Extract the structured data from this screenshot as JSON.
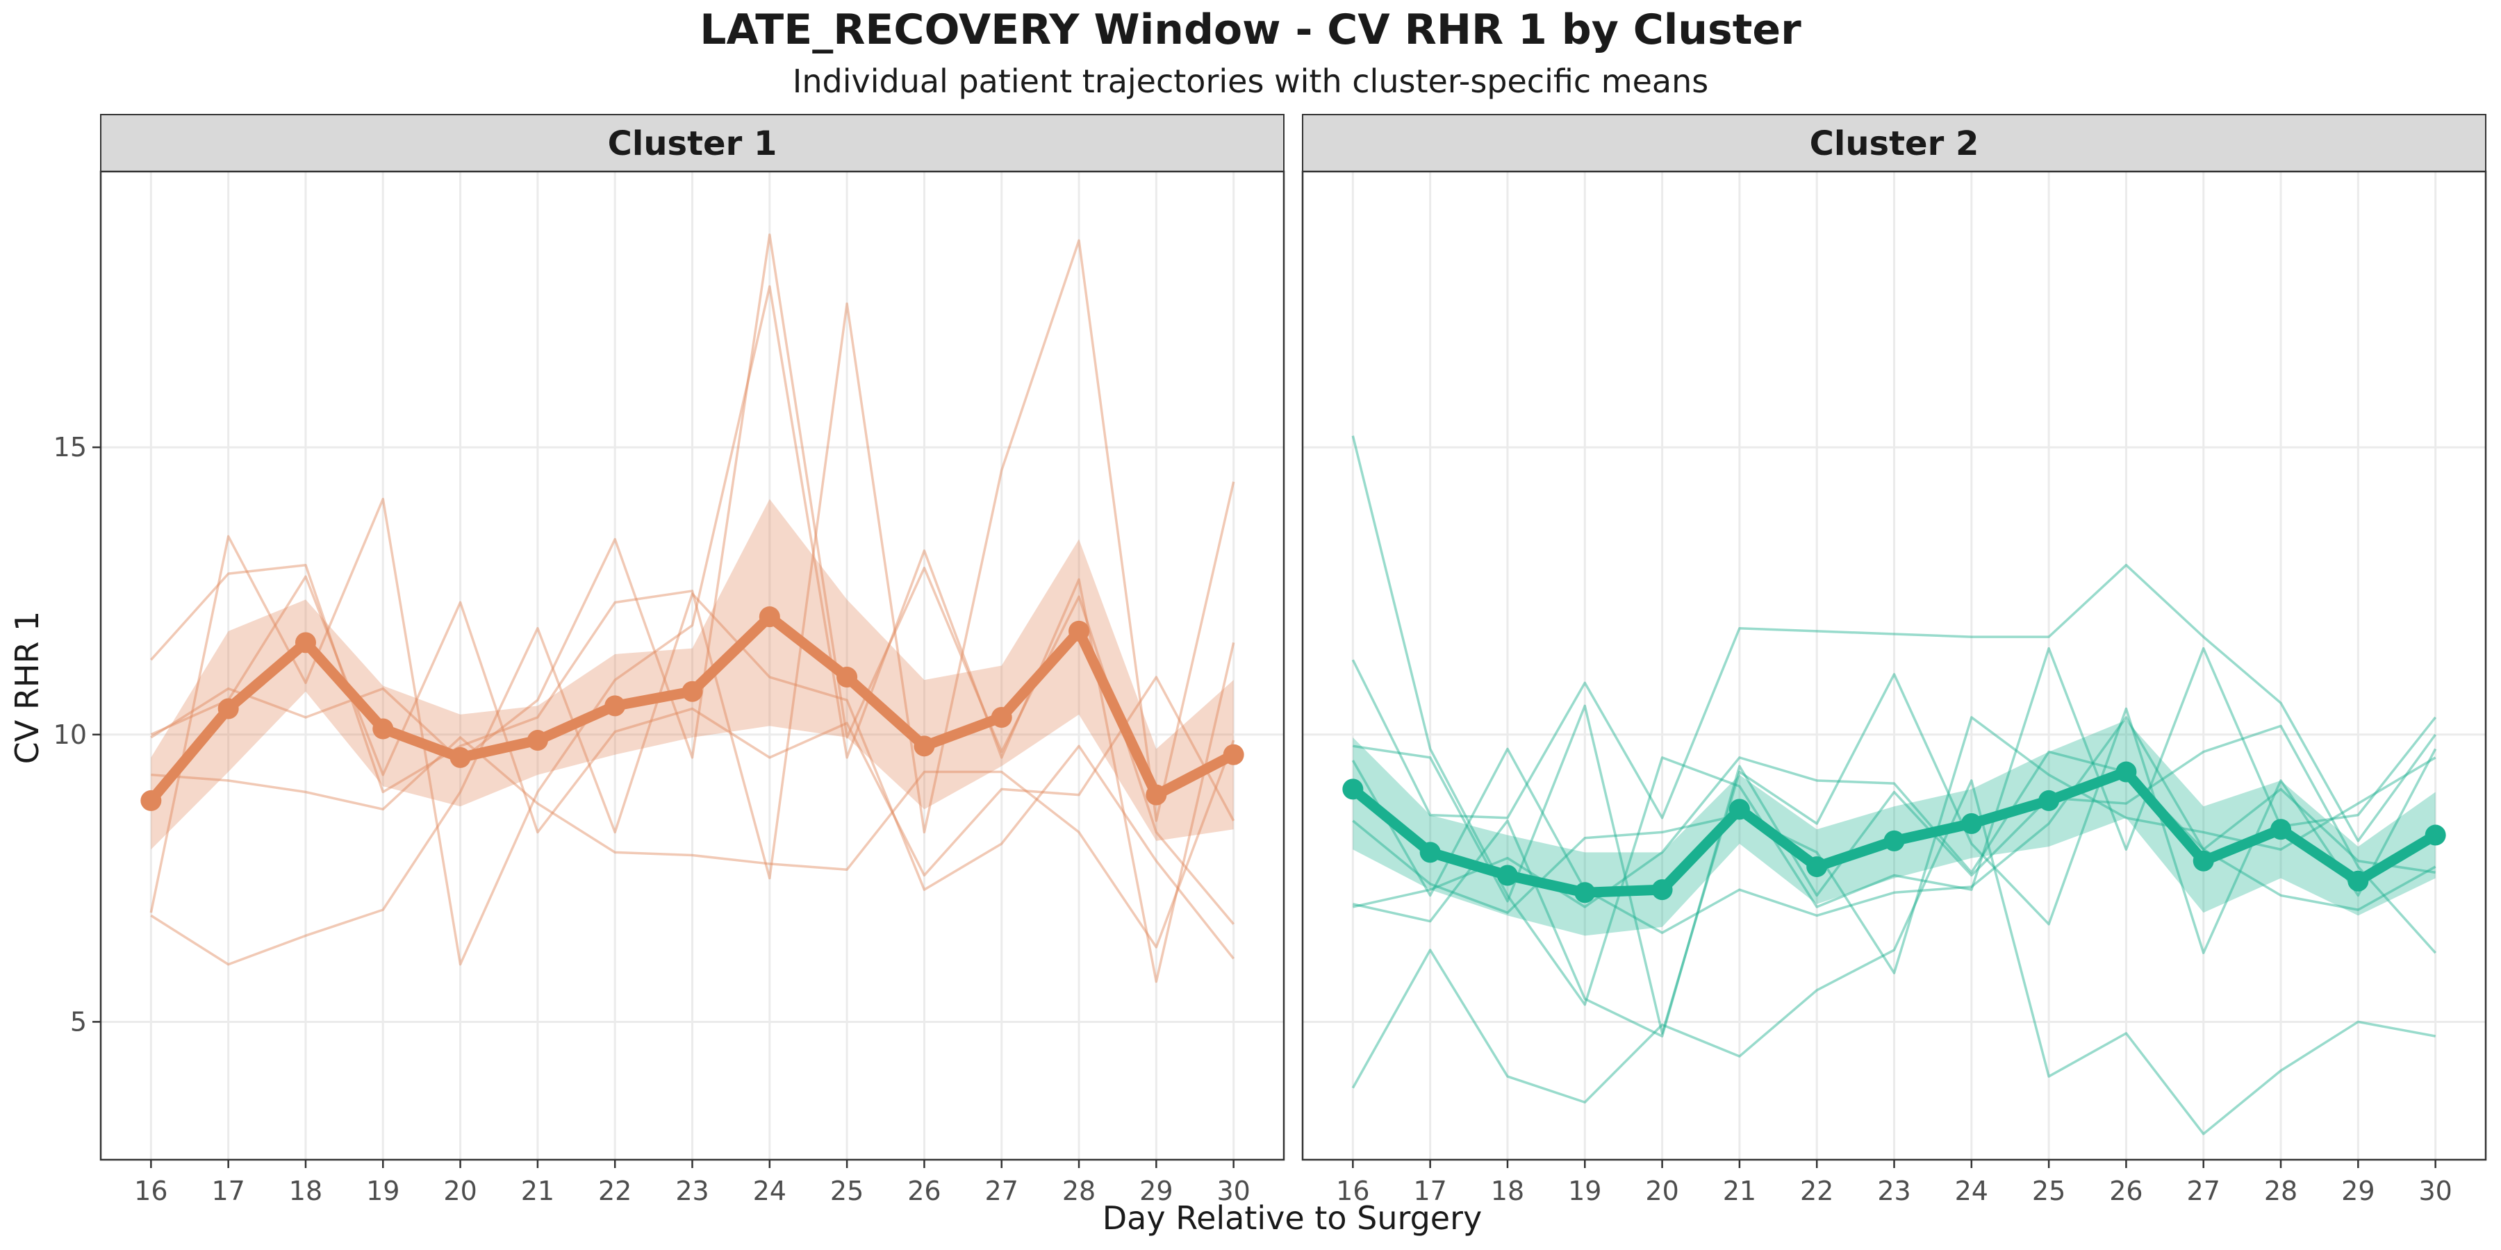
{
  "title": "LATE_RECOVERY Window - CV RHR 1 by Cluster",
  "subtitle": "Individual patient trajectories with cluster-specific means",
  "chart_data": {
    "type": "line",
    "title": "LATE_RECOVERY Window - CV RHR 1 by Cluster",
    "subtitle": "Individual patient trajectories with cluster-specific means",
    "xlabel": "Day Relative to Surgery",
    "ylabel": "CV RHR 1",
    "x": [
      16,
      17,
      18,
      19,
      20,
      21,
      22,
      23,
      24,
      25,
      26,
      27,
      28,
      29,
      30
    ],
    "xlim": [
      15.35,
      30.65
    ],
    "ylim": [
      2.6,
      19.8
    ],
    "yticks": [
      5,
      10,
      15
    ],
    "grid": true,
    "panels": [
      {
        "name": "Cluster 1",
        "color": "#E0875A",
        "mean": [
          8.85,
          10.45,
          11.6,
          10.1,
          9.6,
          9.9,
          10.5,
          10.75,
          12.05,
          11.0,
          9.8,
          10.3,
          11.8,
          8.95,
          9.65
        ],
        "ci_upper": [
          9.6,
          11.8,
          12.35,
          10.85,
          10.35,
          10.5,
          11.4,
          11.5,
          14.1,
          12.35,
          10.95,
          11.2,
          13.4,
          9.75,
          10.95
        ],
        "ci_lower": [
          8.0,
          9.35,
          10.75,
          9.1,
          8.75,
          9.3,
          9.65,
          9.95,
          10.15,
          9.95,
          8.7,
          9.45,
          10.35,
          8.15,
          8.35
        ],
        "individuals": [
          [
            11.3,
            12.8,
            12.95,
            9.0,
            9.8,
            10.3,
            12.3,
            12.5,
            7.5,
            17.5,
            8.3,
            14.6,
            18.6,
            8.5,
            14.4
          ],
          [
            9.95,
            10.8,
            10.3,
            10.8,
            9.55,
            10.6,
            13.4,
            9.6,
            18.7,
            9.95,
            12.9,
            9.7,
            12.4,
            8.3,
            6.7
          ],
          [
            6.9,
            13.45,
            10.9,
            14.1,
            6.0,
            9.0,
            10.95,
            11.9,
            17.8,
            9.6,
            13.2,
            9.6,
            12.7,
            5.7,
            11.6
          ],
          [
            6.85,
            6.0,
            6.5,
            6.95,
            9.0,
            11.85,
            8.3,
            12.45,
            11.0,
            10.6,
            7.3,
            8.1,
            9.8,
            7.8,
            6.1
          ],
          [
            9.3,
            9.2,
            9.0,
            8.7,
            9.95,
            8.8,
            7.95,
            7.9,
            7.75,
            7.65,
            9.35,
            9.35,
            8.3,
            6.3,
            9.9
          ],
          [
            10.0,
            10.6,
            12.75,
            9.3,
            12.3,
            8.3,
            10.05,
            10.45,
            9.6,
            10.2,
            7.55,
            9.05,
            8.95,
            11.0,
            8.5
          ]
        ]
      },
      {
        "name": "Cluster 2",
        "color": "#1AB08F",
        "mean": [
          9.05,
          7.95,
          7.55,
          7.25,
          7.3,
          8.7,
          7.7,
          8.15,
          8.45,
          8.85,
          9.35,
          7.8,
          8.35,
          7.45,
          8.25
        ],
        "ci_upper": [
          9.95,
          8.6,
          8.25,
          7.95,
          7.95,
          9.3,
          8.35,
          8.75,
          9.05,
          9.7,
          10.25,
          8.75,
          9.2,
          8.05,
          9.0
        ],
        "ci_lower": [
          8.0,
          7.3,
          6.85,
          6.5,
          6.65,
          8.1,
          7.05,
          7.5,
          7.85,
          8.05,
          8.55,
          6.9,
          7.5,
          6.85,
          7.5
        ],
        "individuals": [
          [
            15.2,
            9.75,
            7.2,
            5.3,
            9.6,
            9.1,
            7.0,
            7.55,
            7.3,
            11.5,
            8.0,
            11.5,
            8.4,
            8.6,
            10.3
          ],
          [
            11.3,
            8.6,
            8.55,
            10.9,
            8.55,
            11.85,
            11.8,
            11.75,
            11.7,
            11.7,
            12.95,
            11.7,
            10.55,
            8.15,
            10.0
          ],
          [
            9.8,
            9.6,
            7.1,
            10.5,
            4.8,
            9.35,
            8.45,
            11.05,
            8.1,
            6.7,
            10.45,
            6.2,
            9.2,
            7.2,
            9.75
          ],
          [
            9.55,
            7.2,
            9.75,
            7.3,
            6.55,
            7.3,
            6.85,
            7.25,
            7.35,
            8.45,
            10.3,
            8.0,
            7.2,
            6.95,
            7.7
          ],
          [
            3.85,
            6.25,
            4.05,
            3.6,
            4.95,
            4.4,
            5.55,
            6.25,
            9.2,
            4.05,
            4.8,
            3.05,
            4.15,
            5.0,
            4.75
          ],
          [
            7.05,
            6.75,
            8.5,
            5.4,
            4.75,
            9.45,
            7.2,
            9.0,
            7.55,
            8.9,
            8.8,
            9.7,
            10.15,
            7.7,
            6.2
          ],
          [
            8.5,
            7.4,
            6.9,
            8.2,
            8.3,
            8.6,
            7.95,
            5.85,
            10.3,
            9.3,
            8.55,
            8.3,
            8.0,
            8.8,
            9.6
          ],
          [
            7.0,
            7.3,
            7.85,
            7.0,
            7.95,
            9.6,
            9.2,
            9.15,
            7.6,
            9.7,
            9.35,
            8.0,
            9.05,
            7.8,
            7.6
          ]
        ]
      }
    ]
  }
}
